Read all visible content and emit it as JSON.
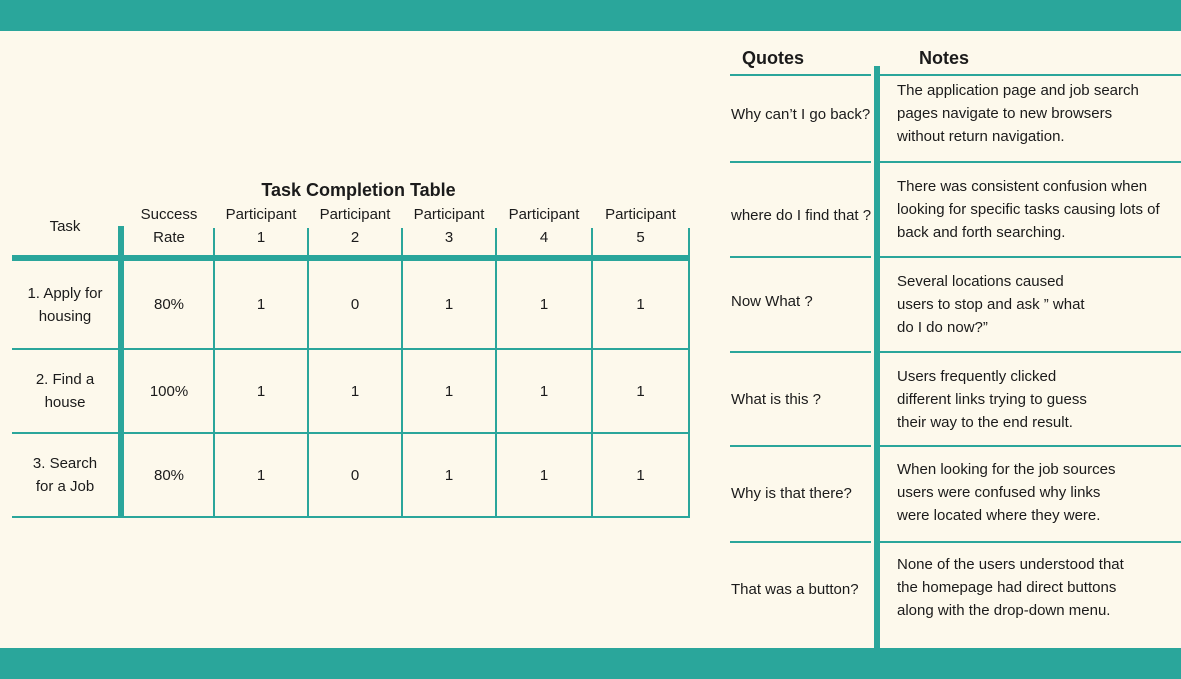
{
  "colors": {
    "accent_teal": "#2AA69B",
    "background_cream": "#FDF9EC",
    "text": "#1b1b1b"
  },
  "task_table": {
    "title": "Task Completion Table",
    "headers": [
      "Task",
      "Success\nRate",
      "Participant\n1",
      "Participant\n2",
      "Participant\n3",
      "Participant\n4",
      "Participant\n5"
    ],
    "rows": [
      {
        "task": "1. Apply for\nhousing",
        "success_rate": "80%",
        "participants": [
          "1",
          "0",
          "1",
          "1",
          "1"
        ]
      },
      {
        "task": "2. Find a\nhouse",
        "success_rate": "100%",
        "participants": [
          "1",
          "1",
          "1",
          "1",
          "1"
        ]
      },
      {
        "task": "3. Search\nfor a Job",
        "success_rate": "80%",
        "participants": [
          "1",
          "0",
          "1",
          "1",
          "1"
        ]
      }
    ]
  },
  "feedback_table": {
    "quotes_header": "Quotes",
    "notes_header": "Notes",
    "rows": [
      {
        "quote": "Why can’t I go back?",
        "note": "The application page and job search\npages navigate to new browsers\nwithout return navigation."
      },
      {
        "quote": "where do I find that ?",
        "note": "There was consistent confusion when\nlooking for specific tasks causing lots of\nback and forth searching."
      },
      {
        "quote": "Now What ?",
        "note": "Several locations caused\nusers to stop and ask ” what\ndo I do now?”"
      },
      {
        "quote": "What is this ?",
        "note": "Users frequently clicked\ndifferent links trying to guess\ntheir way to the end result."
      },
      {
        "quote": "Why is that there?",
        "note": "When looking for the job sources\nusers were confused why links\nwere located where they were."
      },
      {
        "quote": "That was a button?",
        "note": "None of the users understood that\nthe homepage had direct buttons\nalong with the drop-down menu."
      }
    ]
  }
}
